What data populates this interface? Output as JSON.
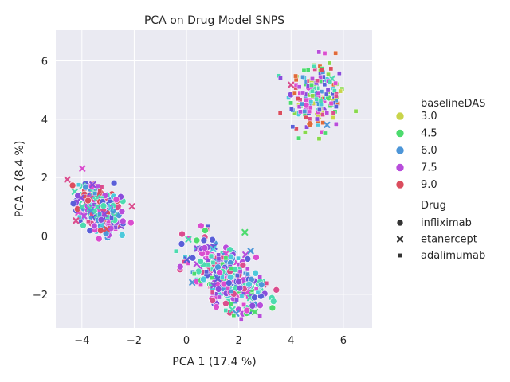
{
  "chart_data": {
    "type": "scatter",
    "title": "PCA on Drug Model SNPS",
    "xlabel": "PCA 1 (17.4 %)",
    "ylabel": "PCA 2 (8.4 %)",
    "xlim": [
      -5.0,
      7.1
    ],
    "ylim": [
      -3.15,
      7.05
    ],
    "xticks": [
      -4,
      -2,
      0,
      2,
      4,
      6
    ],
    "yticks": [
      -2,
      0,
      2,
      4,
      6
    ],
    "grid": true,
    "background": "#eaeaf2",
    "legend": {
      "placement": "right",
      "hue_title": "baselineDAS",
      "hue_entries": [
        {
          "label": "3.0",
          "color": "#c9d44a"
        },
        {
          "label": "4.5",
          "color": "#4ddb6e"
        },
        {
          "label": "6.0",
          "color": "#4d96d8"
        },
        {
          "label": "7.5",
          "color": "#b84ddb"
        },
        {
          "label": "9.0",
          "color": "#db4d5e"
        }
      ],
      "style_title": "Drug",
      "style_entries": [
        {
          "label": "infliximab",
          "marker": "circle"
        },
        {
          "label": "etanercept",
          "marker": "x"
        },
        {
          "label": "adalimumab",
          "marker": "square"
        }
      ]
    },
    "palette": [
      "#c9d44a",
      "#88d94c",
      "#4ddb6e",
      "#4ddbb0",
      "#4dc9db",
      "#4d96d8",
      "#5a5fd8",
      "#8a4ddb",
      "#b84ddb",
      "#db4dcf",
      "#db4d8e",
      "#db4d5e",
      "#e06a3a"
    ],
    "clusters": [
      {
        "name": "upper-right",
        "cx": 4.95,
        "cy": 4.75,
        "sx": 0.55,
        "sy": 0.65,
        "n": 180,
        "marker_mix": {
          "square": 0.92,
          "circle": 0.05,
          "x": 0.03
        },
        "palette_range": [
          0,
          12
        ]
      },
      {
        "name": "left",
        "cx": -3.35,
        "cy": 0.95,
        "sx": 0.42,
        "sy": 0.38,
        "n": 330,
        "marker_mix": {
          "circle": 0.55,
          "x": 0.2,
          "square": 0.25
        },
        "palette_range": [
          3,
          11
        ]
      },
      {
        "name": "lower-middle",
        "cx": 1.6,
        "cy": -1.35,
        "sx": 0.75,
        "sy": 0.55,
        "n": 360,
        "marker_mix": {
          "circle": 0.55,
          "square": 0.35,
          "x": 0.1
        },
        "palette_range": [
          2,
          10
        ]
      }
    ]
  }
}
